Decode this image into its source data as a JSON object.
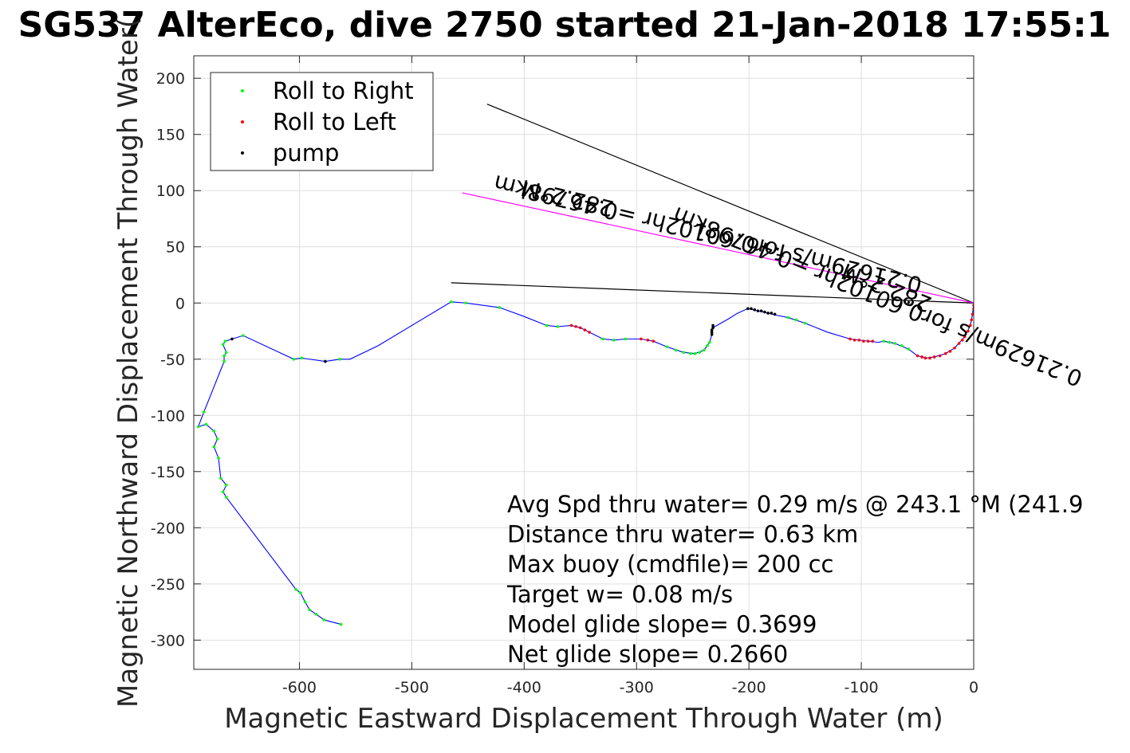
{
  "chart_data": {
    "type": "scatter",
    "title": "SG537 AlterEco, dive 2750 started 21-Jan-2018 17:55:1",
    "xlabel": "Magnetic Eastward Displacement Through Water (m)",
    "ylabel": "Magnetic Northward Displacement Through Water(",
    "xlim": [
      -694,
      0
    ],
    "ylim": [
      -326,
      220
    ],
    "xticks": [
      -600,
      -500,
      -400,
      -300,
      -200,
      -100,
      0
    ],
    "yticks": [
      200,
      150,
      100,
      50,
      0,
      -50,
      -100,
      -150,
      -200,
      -250,
      -300
    ],
    "grid": true,
    "legend_position": "top-left",
    "legend": [
      {
        "name": "Roll to Right",
        "color": "#00ff00"
      },
      {
        "name": "Roll to Left",
        "color": "#ff0000"
      },
      {
        "name": "pump",
        "color": "#000000"
      }
    ],
    "track": {
      "color": "#0000ff",
      "points": [
        [
          -563,
          -286
        ],
        [
          -578,
          -282
        ],
        [
          -585,
          -277
        ],
        [
          -591,
          -273
        ],
        [
          -595,
          -266
        ],
        [
          -599,
          -258
        ],
        [
          -603,
          -255
        ],
        [
          -665,
          -173
        ],
        [
          -668,
          -168
        ],
        [
          -665,
          -162
        ],
        [
          -670,
          -156
        ],
        [
          -672,
          -138
        ],
        [
          -676,
          -128
        ],
        [
          -673,
          -121
        ],
        [
          -676,
          -114
        ],
        [
          -683,
          -108
        ],
        [
          -690,
          -110
        ],
        [
          -685,
          -97
        ],
        [
          -667,
          -52
        ],
        [
          -667,
          -47
        ],
        [
          -665,
          -44
        ],
        [
          -668,
          -37
        ],
        [
          -666,
          -34
        ],
        [
          -660,
          -32
        ],
        [
          -650,
          -29
        ],
        [
          -605,
          -50
        ],
        [
          -598,
          -49
        ],
        [
          -577,
          -52
        ],
        [
          -564,
          -50
        ],
        [
          -555,
          -50
        ],
        [
          -530,
          -38
        ],
        [
          -465,
          1
        ],
        [
          -452,
          0
        ],
        [
          -422,
          -4
        ],
        [
          -400,
          -12
        ],
        [
          -380,
          -20
        ],
        [
          -370,
          -21
        ],
        [
          -358,
          -20
        ],
        [
          -350,
          -22
        ],
        [
          -342,
          -26
        ],
        [
          -330,
          -32
        ],
        [
          -320,
          -33
        ],
        [
          -310,
          -32
        ],
        [
          -296,
          -32
        ],
        [
          -285,
          -34
        ],
        [
          -273,
          -39
        ],
        [
          -258,
          -44
        ],
        [
          -248,
          -45
        ],
        [
          -240,
          -42
        ],
        [
          -235,
          -35
        ],
        [
          -233,
          -28
        ],
        [
          -232,
          -22
        ],
        [
          -218,
          -14
        ],
        [
          -210,
          -9
        ],
        [
          -201,
          -5
        ],
        [
          -192,
          -7
        ],
        [
          -183,
          -9
        ],
        [
          -175,
          -11
        ],
        [
          -165,
          -13
        ],
        [
          -150,
          -18
        ],
        [
          -130,
          -26
        ],
        [
          -110,
          -32
        ],
        [
          -85,
          -35
        ],
        [
          -80,
          -34
        ],
        [
          -70,
          -36
        ],
        [
          -58,
          -41
        ],
        [
          -50,
          -47
        ],
        [
          -43,
          -49
        ],
        [
          -35,
          -48
        ],
        [
          -25,
          -45
        ],
        [
          -17,
          -40
        ],
        [
          -8,
          -30
        ],
        [
          -3,
          -20
        ],
        [
          -1,
          -10
        ],
        [
          0,
          0
        ]
      ]
    },
    "series": [
      {
        "name": "Roll to Right",
        "color": "#00ff00",
        "points": [
          [
            -563,
            -286
          ],
          [
            -578,
            -282
          ],
          [
            -585,
            -277
          ],
          [
            -591,
            -273
          ],
          [
            -595,
            -266
          ],
          [
            -599,
            -258
          ],
          [
            -603,
            -255
          ],
          [
            -665,
            -173
          ],
          [
            -668,
            -168
          ],
          [
            -665,
            -162
          ],
          [
            -670,
            -156
          ],
          [
            -672,
            -138
          ],
          [
            -676,
            -128
          ],
          [
            -673,
            -121
          ],
          [
            -676,
            -114
          ],
          [
            -683,
            -108
          ],
          [
            -690,
            -110
          ],
          [
            -685,
            -97
          ],
          [
            -667,
            -52
          ],
          [
            -667,
            -47
          ],
          [
            -665,
            -44
          ],
          [
            -668,
            -37
          ],
          [
            -666,
            -34
          ],
          [
            -650,
            -29
          ],
          [
            -605,
            -50
          ],
          [
            -598,
            -49
          ],
          [
            -564,
            -50
          ],
          [
            -465,
            1
          ],
          [
            -452,
            0
          ],
          [
            -422,
            -4
          ],
          [
            -380,
            -20
          ],
          [
            -370,
            -21
          ],
          [
            -330,
            -32
          ],
          [
            -320,
            -33
          ],
          [
            -310,
            -32
          ],
          [
            -273,
            -39
          ],
          [
            -265,
            -42
          ],
          [
            -258,
            -44
          ],
          [
            -252,
            -45
          ],
          [
            -248,
            -45
          ],
          [
            -244,
            -44
          ],
          [
            -240,
            -42
          ],
          [
            -237,
            -38
          ],
          [
            -235,
            -35
          ],
          [
            -165,
            -13
          ],
          [
            -158,
            -15
          ],
          [
            -150,
            -18
          ],
          [
            -80,
            -34
          ],
          [
            -75,
            -35
          ],
          [
            -70,
            -36
          ],
          [
            -64,
            -38
          ],
          [
            -58,
            -41
          ]
        ]
      },
      {
        "name": "Roll to Left",
        "color": "#ff0000",
        "points": [
          [
            -358,
            -20
          ],
          [
            -354,
            -21
          ],
          [
            -350,
            -22
          ],
          [
            -346,
            -24
          ],
          [
            -342,
            -26
          ],
          [
            -296,
            -32
          ],
          [
            -290,
            -33
          ],
          [
            -285,
            -34
          ],
          [
            -110,
            -32
          ],
          [
            -106,
            -33
          ],
          [
            -102,
            -33
          ],
          [
            -98,
            -34
          ],
          [
            -94,
            -34
          ],
          [
            -90,
            -34
          ],
          [
            -50,
            -47
          ],
          [
            -46,
            -48
          ],
          [
            -43,
            -49
          ],
          [
            -39,
            -49
          ],
          [
            -35,
            -48
          ],
          [
            -30,
            -47
          ],
          [
            -25,
            -45
          ],
          [
            -21,
            -43
          ],
          [
            -17,
            -40
          ],
          [
            -13,
            -36
          ],
          [
            -10,
            -33
          ],
          [
            -8,
            -30
          ],
          [
            -5,
            -25
          ],
          [
            -3,
            -20
          ],
          [
            -2,
            -15
          ],
          [
            -1,
            -10
          ],
          [
            0,
            -5
          ],
          [
            0,
            -2
          ]
        ]
      },
      {
        "name": "pump",
        "color": "#000000",
        "points": [
          [
            -660,
            -32
          ],
          [
            -577,
            -52
          ],
          [
            -233,
            -28
          ],
          [
            -233,
            -26
          ],
          [
            -233,
            -24
          ],
          [
            -232,
            -22
          ],
          [
            -232,
            -20
          ],
          [
            -201,
            -5
          ],
          [
            -198,
            -5
          ],
          [
            -195,
            -6
          ],
          [
            -192,
            -7
          ],
          [
            -189,
            -7
          ],
          [
            -186,
            -8
          ],
          [
            -183,
            -9
          ],
          [
            -180,
            -9
          ],
          [
            -177,
            -10
          ]
        ]
      }
    ],
    "lines": [
      {
        "color": "#000000",
        "points": [
          [
            -433,
            177
          ],
          [
            0,
            0
          ]
        ]
      },
      {
        "color": "#000000",
        "points": [
          [
            -465,
            18
          ],
          [
            0,
            0
          ]
        ]
      },
      {
        "color": "#ff00ff",
        "points": [
          [
            -455,
            98
          ],
          [
            0,
            0
          ]
        ]
      }
    ],
    "annotations": [
      {
        "text": "282.2°M",
        "x": -360,
        "y": 100,
        "rotation": 193.6
      },
      {
        "text": "0.21629m/s for0.60102hr =0.46798km",
        "x": -235,
        "y": 68,
        "rotation": 193.6
      },
      {
        "text": "282.2°M",
        "x": -75,
        "y": 20,
        "rotation": 202.2
      },
      {
        "text": "0.21629m/s for0.60102hr =0.46798km",
        "x": -83,
        "y": 12,
        "rotation": 202.2
      }
    ],
    "stats": [
      "Avg Spd thru water=  0.29 m/s @ 243.1 °M (241.9",
      "Distance thru water=  0.63 km",
      "Max buoy (cmdfile)= 200 cc",
      "Target w= 0.08 m/s",
      "Model glide slope= 0.3699",
      "Net glide slope= 0.2660"
    ]
  }
}
